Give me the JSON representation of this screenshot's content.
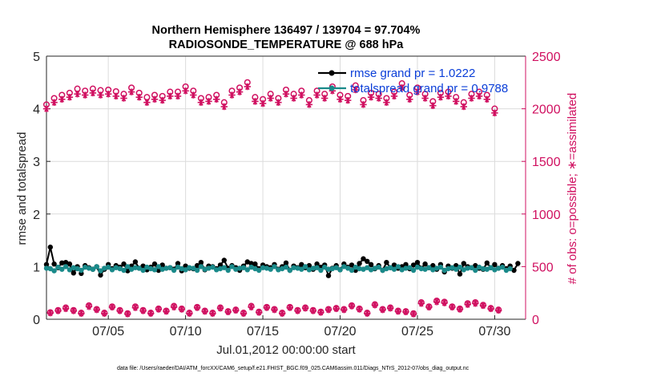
{
  "title_line1": "Northern Hemisphere 136497 / 139704 = 97.704%",
  "title_line2": "RADIOSONDE_TEMPERATURE @ 688 hPa",
  "xlabel": "Jul.01,2012 00:00:00 start",
  "ylabel_left": "rmse and totalspread",
  "ylabel_right": "# of obs: o=possible; ∗=assimilated",
  "footer": "data file: /Users/raeder/DAI/ATM_forcXX/CAM6_setup/f.e21.FHIST_BGC.f09_025.CAM6assim.011/Diags_NTrS_2012-07/obs_diag_output.nc",
  "legend": {
    "rmse": "rmse grand pr = 1.0222",
    "spread": "totalspread grand pr = 0.9788"
  },
  "colors": {
    "rmse": "#000000",
    "spread": "#1a8a8a",
    "obs": "#d01060",
    "legend_text": "#0a3ed8"
  },
  "chart_data": {
    "type": "line",
    "x_start": "2012-07-01",
    "x_step_days": 0.25,
    "xlim": [
      "2012-07-01",
      "2012-08-01"
    ],
    "x_ticks": [
      "07/05",
      "07/10",
      "07/15",
      "07/20",
      "07/25",
      "07/30"
    ],
    "ylim_left": [
      0,
      5
    ],
    "y_ticks_left": [
      "0",
      "1",
      "2",
      "3",
      "4",
      "5"
    ],
    "ylim_right": [
      0,
      2500
    ],
    "y_ticks_right": [
      "0",
      "500",
      "1000",
      "1500",
      "2000",
      "2500"
    ],
    "grid": true,
    "series": [
      {
        "name": "rmse grand pr = 1.0222",
        "axis": "left",
        "marker": "dot",
        "values": [
          1.04,
          1.37,
          1.05,
          0.98,
          1.07,
          1.08,
          1.05,
          0.88,
          1.0,
          0.87,
          1.02,
          0.98,
          0.95,
          1.0,
          0.84,
          0.95,
          1.04,
          0.96,
          1.02,
          0.99,
          1.05,
          0.92,
          1.01,
          1.09,
          0.97,
          1.01,
          0.94,
          0.99,
          1.05,
          0.93,
          1.03,
          0.97,
          0.98,
          0.95,
          1.06,
          0.92,
          1.01,
          0.97,
          0.96,
          1.02,
          1.08,
          0.94,
          1.01,
          1.0,
          0.96,
          1.03,
          1.12,
          0.97,
          1.02,
          0.98,
          0.93,
          1.01,
          1.09,
          1.06,
          1.05,
          0.96,
          1.03,
          1.0,
          0.98,
          1.04,
          0.95,
          1.0,
          1.07,
          0.93,
          1.01,
          0.98,
          1.04,
          0.98,
          1.02,
          0.95,
          1.05,
          0.99,
          1.03,
          0.83,
          0.97,
          1.02,
          0.94,
          1.05,
          0.99,
          1.03,
          0.93,
          1.06,
          1.15,
          1.1,
          1.04,
          0.96,
          1.02,
          0.93,
          1.08,
          0.98,
          1.03,
          0.97,
          1.0,
          1.04,
          0.96,
          1.03,
          1.08,
          0.97,
          1.05,
          0.98,
          1.02,
          0.95,
          1.04,
          0.9,
          1.01,
          0.97,
          1.02,
          0.86,
          1.06,
          1.0,
          0.98,
          1.02,
          0.97,
          0.95,
          1.07,
          0.98,
          1.04,
          0.97,
          1.02,
          0.96,
          1.01,
          0.93,
          1.06
        ]
      },
      {
        "name": "totalspread grand pr = 0.9788",
        "axis": "left",
        "marker": "dot",
        "values": [
          0.97,
          0.96,
          0.92,
          0.99,
          0.95,
          1.0,
          0.94,
          0.98,
          0.96,
          0.93,
          0.99,
          0.97,
          0.95,
          1.0,
          0.92,
          0.97,
          0.99,
          0.94,
          0.98,
          0.96,
          0.93,
          1.0,
          0.95,
          0.98,
          0.97,
          0.93,
          0.99,
          0.96,
          0.94,
          1.0,
          0.95,
          0.97,
          0.98,
          0.93,
          0.99,
          0.96,
          0.94,
          0.98,
          0.97,
          0.93,
          1.0,
          0.95,
          0.97,
          0.99,
          0.94,
          0.96,
          0.98,
          0.93,
          1.0,
          0.95,
          0.97,
          0.98,
          0.94,
          0.99,
          0.96,
          0.93,
          0.98,
          0.97,
          0.95,
          1.0,
          0.94,
          0.96,
          0.99,
          0.93,
          0.98,
          0.97,
          0.95,
          1.0,
          0.94,
          0.97,
          0.98,
          0.93,
          0.99,
          0.95,
          0.96,
          0.98,
          0.94,
          1.0,
          0.97,
          0.93,
          0.99,
          0.96,
          0.95,
          0.98,
          0.94,
          0.97,
          0.99,
          0.93,
          0.96,
          0.98,
          0.95,
          1.0,
          0.94,
          0.97,
          0.98,
          0.93,
          0.99,
          0.96,
          0.95,
          0.98,
          0.94,
          0.97,
          0.99,
          0.93,
          0.96,
          0.98,
          0.95,
          0.99,
          0.94,
          0.97,
          0.98,
          0.93,
          0.99,
          0.96,
          0.95,
          0.98,
          0.94,
          0.97,
          0.99,
          0.93,
          0.96
        ]
      },
      {
        "name": "obs possible",
        "axis": "right",
        "marker": "circle",
        "values": [
          2040,
          65,
          2100,
          85,
          2130,
          110,
          2150,
          85,
          2190,
          60,
          2170,
          130,
          2190,
          95,
          2175,
          60,
          2180,
          120,
          2165,
          85,
          2140,
          55,
          2200,
          120,
          2150,
          85,
          2110,
          60,
          2130,
          100,
          2120,
          80,
          2160,
          125,
          2160,
          100,
          2210,
          60,
          2170,
          115,
          2100,
          80,
          2110,
          60,
          2130,
          110,
          2060,
          75,
          2170,
          90,
          2200,
          60,
          2250,
          125,
          2110,
          70,
          2090,
          115,
          2140,
          95,
          2100,
          60,
          2180,
          115,
          2140,
          85,
          2170,
          110,
          2080,
          85,
          2170,
          70,
          2140,
          95,
          2210,
          105,
          2130,
          95,
          2120,
          130,
          2220,
          100,
          2080,
          60,
          2150,
          140,
          2140,
          95,
          2100,
          110,
          2160,
          80,
          2240,
          75,
          2130,
          55,
          2200,
          160,
          2140,
          120,
          2070,
          175,
          2150,
          165,
          2160,
          120,
          2110,
          100,
          2060,
          150,
          2140,
          160,
          2160,
          135,
          2130,
          105,
          2000,
          90
        ]
      },
      {
        "name": "obs assimilated",
        "axis": "right",
        "marker": "asterisk",
        "values": [
          2000,
          60,
          2060,
          80,
          2090,
          100,
          2110,
          80,
          2140,
          55,
          2130,
          120,
          2150,
          90,
          2130,
          55,
          2140,
          115,
          2120,
          80,
          2100,
          50,
          2160,
          110,
          2110,
          80,
          2060,
          55,
          2090,
          95,
          2080,
          75,
          2120,
          115,
          2120,
          95,
          2170,
          55,
          2130,
          110,
          2060,
          75,
          2070,
          55,
          2090,
          105,
          2020,
          70,
          2130,
          85,
          2160,
          55,
          2210,
          115,
          2070,
          65,
          2050,
          110,
          2100,
          90,
          2060,
          55,
          2140,
          110,
          2100,
          80,
          2130,
          105,
          2040,
          80,
          2130,
          65,
          2100,
          90,
          2170,
          100,
          2090,
          90,
          2080,
          125,
          2180,
          95,
          2040,
          55,
          2110,
          135,
          2100,
          90,
          2060,
          105,
          2120,
          75,
          2200,
          70,
          2090,
          50,
          2160,
          150,
          2100,
          115,
          2030,
          165,
          2110,
          155,
          2120,
          115,
          2070,
          95,
          2020,
          140,
          2100,
          150,
          2120,
          130,
          2090,
          100,
          1960,
          85
        ]
      }
    ]
  }
}
